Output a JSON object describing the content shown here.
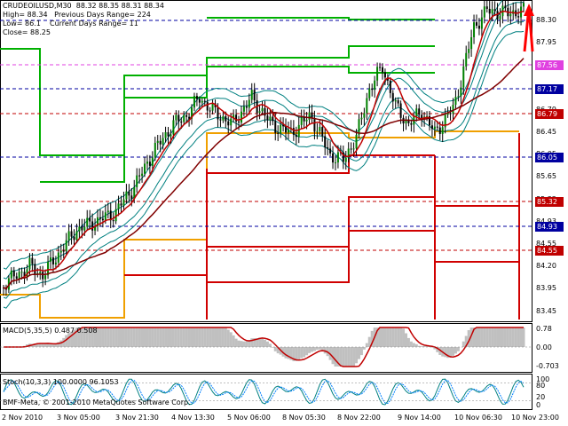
{
  "header": {
    "symbol_line": "CRUDEOILUSD,M30  88.32 88.35 88.31 88.34",
    "high_line": "High= 88.34   Previous Days Range= 224",
    "low_line": "Low= 86.1    Current Days Range= 11",
    "close_line": "Close= 88.25"
  },
  "price_axis": {
    "labels": [
      "88.30",
      "87.95",
      "87.56",
      "87.17",
      "86.79",
      "86.45",
      "86.05",
      "85.65",
      "85.32",
      "84.93",
      "84.55",
      "84.20",
      "83.95",
      "83.45"
    ],
    "badges": [
      {
        "text": "87.56",
        "color": "#e040e0"
      },
      {
        "text": "87.17",
        "color": "#0000a0"
      },
      {
        "text": "86.79",
        "color": "#c00000"
      },
      {
        "text": "86.05",
        "color": "#0000a0"
      },
      {
        "text": "85.32",
        "color": "#c00000"
      },
      {
        "text": "84.93",
        "color": "#0000a0"
      },
      {
        "text": "84.55",
        "color": "#c00000"
      }
    ]
  },
  "macd": {
    "label": "MACD(5,35,5) 0.487 0.508",
    "axis": [
      "0.78",
      "0.00",
      "-0.703"
    ]
  },
  "stoch": {
    "label": "Stoch(10,3,3) 100.0000 96.1053",
    "axis": [
      "100",
      "80",
      "20",
      "0"
    ]
  },
  "watermark": "BMF-Meta, © 2001-2010 MetaQuotes Software Corp.",
  "time_axis": [
    "2 Nov 2010",
    "3 Nov 05:00",
    "3 Nov 21:30",
    "4 Nov 13:30",
    "5 Nov 06:00",
    "8 Nov 05:30",
    "8 Nov 22:00",
    "9 Nov 14:00",
    "10 Nov 06:30",
    "10 Nov 23:00"
  ],
  "colors": {
    "bull_candle": "#008000",
    "candle": "#000000",
    "ma_short": "#c00000",
    "ma_long": "#800000",
    "bollinger": "#008080",
    "green_levels": "#00b000",
    "orange_levels": "#f0a000",
    "red_levels": "#d00000",
    "macd_hist": "#c0c0c0",
    "macd_signal": "#c00000",
    "stoch_main": "#008080",
    "stoch_signal": "#0080ff"
  }
}
